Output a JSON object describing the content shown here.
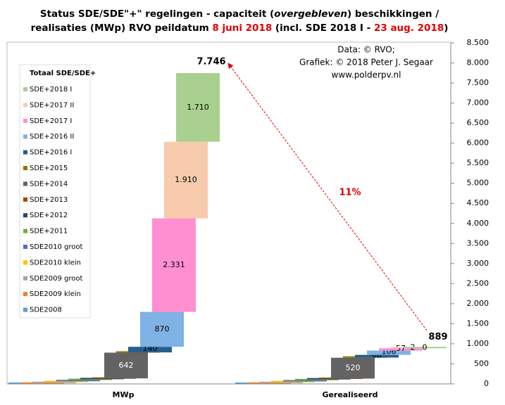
{
  "chart_data": {
    "type": "waterfall",
    "title_lines": [
      [
        {
          "text": "Status SDE/SDE\"+\"  regelingen  - capaciteit (",
          "color": "#000000"
        },
        {
          "text": "overgebleven",
          "color": "#000000",
          "italic": true
        },
        {
          "text": ") beschikkingen  /",
          "color": "#000000"
        }
      ],
      [
        {
          "text": "realisaties (MWp) RVO peildatum ",
          "color": "#000000"
        },
        {
          "text": "8 juni 2018",
          "color": "#e00000"
        },
        {
          "text": " (incl. SDE 2018 I - ",
          "color": "#000000"
        },
        {
          "text": "23 aug. 2018",
          "color": "#e00000"
        },
        {
          "text": ")",
          "color": "#000000"
        }
      ]
    ],
    "source_lines": [
      "Data: © RVO;",
      "Grafiek:  © 2018 Peter J. Segaar",
      "www.polderpv.nl"
    ],
    "legend_title": "Totaal SDE/SDE+",
    "annotation": "11%",
    "categories": [
      "MWp",
      "Gerealiseerd"
    ],
    "series": [
      {
        "name": "SDE2008",
        "color": "#5b9bd5",
        "values": [
          3,
          3
        ],
        "value_labels": [
          null,
          null
        ]
      },
      {
        "name": "SDE2009 klein",
        "color": "#ed7d31",
        "values": [
          17,
          16
        ],
        "value_labels": [
          null,
          null
        ]
      },
      {
        "name": "SDE2009 groot",
        "color": "#a5a5a5",
        "values": [
          24,
          22
        ],
        "value_labels": [
          null,
          null
        ]
      },
      {
        "name": "SDE2010 klein",
        "color": "#ffc000",
        "values": [
          22,
          20
        ],
        "value_labels": [
          null,
          null
        ]
      },
      {
        "name": "SDE2010 groot",
        "color": "#4472c4",
        "values": [
          30,
          30
        ],
        "value_labels": [
          null,
          null
        ]
      },
      {
        "name": "SDE+2011",
        "color": "#70ad47",
        "values": [
          20,
          20
        ],
        "value_labels": [
          null,
          null
        ]
      },
      {
        "name": "SDE+2012",
        "color": "#264478",
        "values": [
          12,
          12
        ],
        "value_labels": [
          null,
          null
        ]
      },
      {
        "name": "SDE+2013",
        "color": "#9e480e",
        "values": [
          10,
          10
        ],
        "value_labels": [
          null,
          null
        ]
      },
      {
        "name": "SDE+2014",
        "color": "#636363",
        "values": [
          642,
          520
        ],
        "value_labels": [
          "642",
          "520"
        ]
      },
      {
        "name": "SDE+2015",
        "color": "#997300",
        "values": [
          5,
          3
        ],
        "value_labels": [
          null,
          null
        ]
      },
      {
        "name": "SDE+2016 I",
        "color": "#255e91",
        "values": [
          140,
          68
        ],
        "value_labels": [
          "140",
          "68"
        ]
      },
      {
        "name": "SDE+2016 II",
        "color": "#7fb2e5",
        "values": [
          870,
          106
        ],
        "value_labels": [
          "870",
          "106"
        ]
      },
      {
        "name": "SDE+2017 I",
        "color": "#ff8fd0",
        "values": [
          2331,
          57
        ],
        "value_labels": [
          "2.331",
          "57"
        ]
      },
      {
        "name": "SDE+2017 II",
        "color": "#f8cbad",
        "values": [
          1910,
          2
        ],
        "value_labels": [
          "1.910",
          "2"
        ]
      },
      {
        "name": "SDE+2018 I",
        "color": "#a9d08e",
        "values": [
          1710,
          0
        ],
        "value_labels": [
          "1.710",
          "0"
        ]
      }
    ],
    "totals": {
      "values": [
        7746,
        889
      ],
      "value_labels": [
        "7.746",
        "889"
      ]
    },
    "ylim": [
      0,
      8500
    ],
    "yticks": [
      0,
      500,
      {
        "value": 1000,
        "label": "1.000"
      },
      {
        "value": 1500,
        "label": "1.500"
      },
      {
        "value": 2000,
        "label": "2.000"
      },
      {
        "value": 2500,
        "label": "2.500"
      },
      {
        "value": 3000,
        "label": "3.000"
      },
      {
        "value": 3500,
        "label": "3.500"
      },
      {
        "value": 4000,
        "label": "4.000"
      },
      {
        "value": 4500,
        "label": "4.500"
      },
      {
        "value": 5000,
        "label": "5.000"
      },
      {
        "value": 5500,
        "label": "5.500"
      },
      {
        "value": 6000,
        "label": "6.000"
      },
      {
        "value": 6500,
        "label": "6.500"
      },
      {
        "value": 7000,
        "label": "7.000"
      },
      {
        "value": 7500,
        "label": "7.500"
      },
      {
        "value": 8000,
        "label": "8.000"
      },
      {
        "value": 8500,
        "label": "8.500"
      }
    ]
  }
}
